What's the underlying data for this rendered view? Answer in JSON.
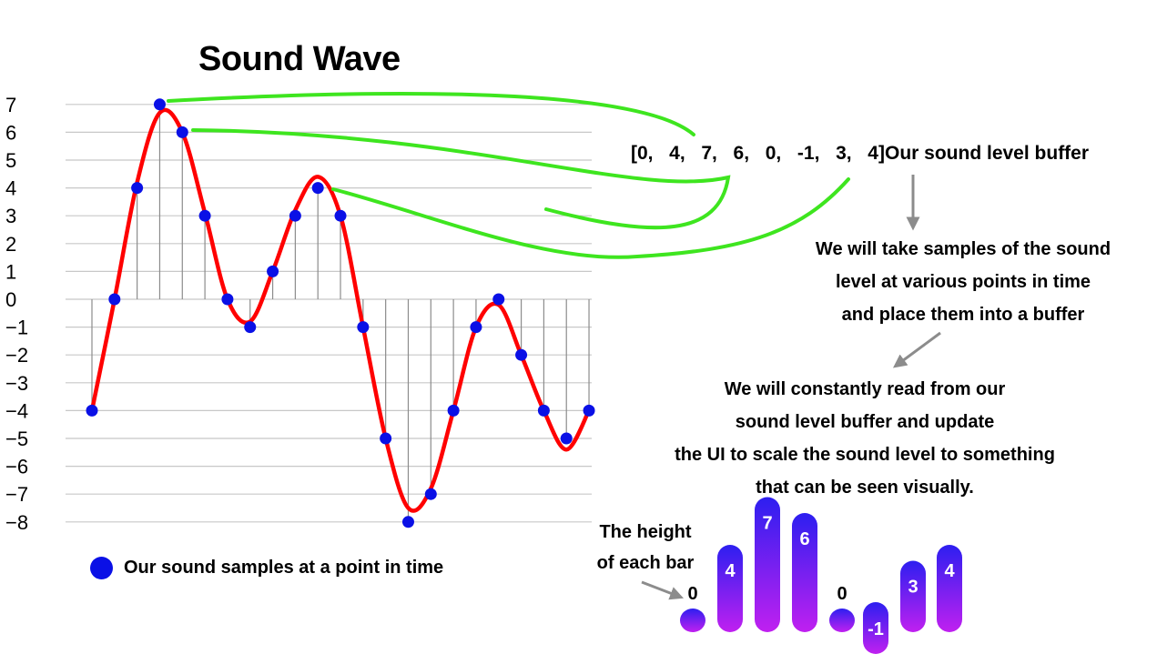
{
  "title": "Sound Wave",
  "chart_data": {
    "type": "line",
    "title": "Sound Wave",
    "ylim": [
      -8,
      7
    ],
    "y_ticks": [
      "7",
      "6",
      "5",
      "4",
      "3",
      "2",
      "1",
      "0",
      "−1",
      "−2",
      "−3",
      "−4",
      "−5",
      "−6",
      "−7",
      "−8"
    ],
    "grid": true,
    "samples": [
      -4,
      0,
      4,
      7,
      6,
      3,
      0,
      -1,
      1,
      3,
      4,
      3,
      -1,
      -5,
      -8,
      -7,
      -4,
      -1,
      0,
      -2,
      -4,
      -5,
      -4
    ],
    "curve": [
      -4,
      0,
      4.2,
      6.7,
      6,
      3.1,
      0,
      -0.8,
      1,
      3.2,
      4.4,
      3,
      -1,
      -5,
      -7.5,
      -6.8,
      -4,
      -1,
      -0.2,
      -2,
      -4,
      -5.4,
      -4
    ],
    "legend": "Our sound samples at a point in time"
  },
  "buffer": {
    "values": [
      "0",
      "4",
      "7",
      "6",
      "0",
      "-1",
      "3",
      "4"
    ],
    "label": "Our sound level buffer"
  },
  "explain_1": [
    "We will take samples of the sound",
    "level at various points in time",
    "and place them into a buffer"
  ],
  "explain_2": [
    "We will constantly read from our",
    "sound level buffer and update",
    "the UI to scale the sound level to something",
    "that can be seen visually."
  ],
  "bar_note": [
    "The height",
    "of each bar"
  ],
  "bars": [
    {
      "label": "0",
      "value": 0
    },
    {
      "label": "4",
      "value": 4
    },
    {
      "label": "7",
      "value": 7
    },
    {
      "label": "6",
      "value": 6
    },
    {
      "label": "0",
      "value": 0
    },
    {
      "label": "-1",
      "value": -1
    },
    {
      "label": "3",
      "value": 3
    },
    {
      "label": "4",
      "value": 4
    }
  ],
  "colors": {
    "wave": "#ff0000",
    "sample": "#0a10e6",
    "connector": "#3ee51f",
    "grid": "#c8c8c8",
    "stem": "#8c8c8c",
    "arrow": "#8c8c8c",
    "bar_top": "#2d1ff0",
    "bar_bottom": "#c020f0"
  }
}
